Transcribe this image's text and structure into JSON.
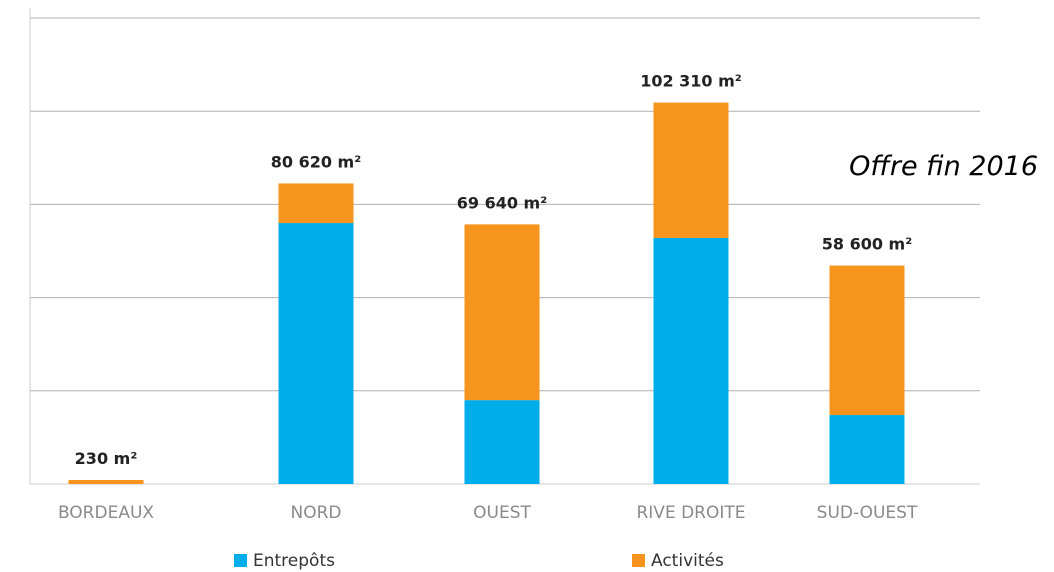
{
  "chart_data": {
    "type": "bar",
    "stacked": true,
    "categories": [
      "BORDEAUX",
      "NORD",
      "OUEST",
      "RIVE DROITE",
      "SUD-OUEST"
    ],
    "series": [
      {
        "name": "Entrepôts",
        "color": "#00adeb",
        "values": [
          0,
          70000,
          22500,
          66000,
          18500
        ]
      },
      {
        "name": "Activités",
        "color": "#f7941d",
        "values": [
          230,
          10620,
          47140,
          36310,
          40100
        ]
      }
    ],
    "totals_labels": [
      "230 m²",
      "80 620 m²",
      "69 640 m²",
      "102 310 m²",
      "58 600 m²"
    ],
    "annotation": "Offre fin 2016",
    "ylim": [
      0,
      125000
    ],
    "grid": true,
    "legend_position": "bottom"
  }
}
